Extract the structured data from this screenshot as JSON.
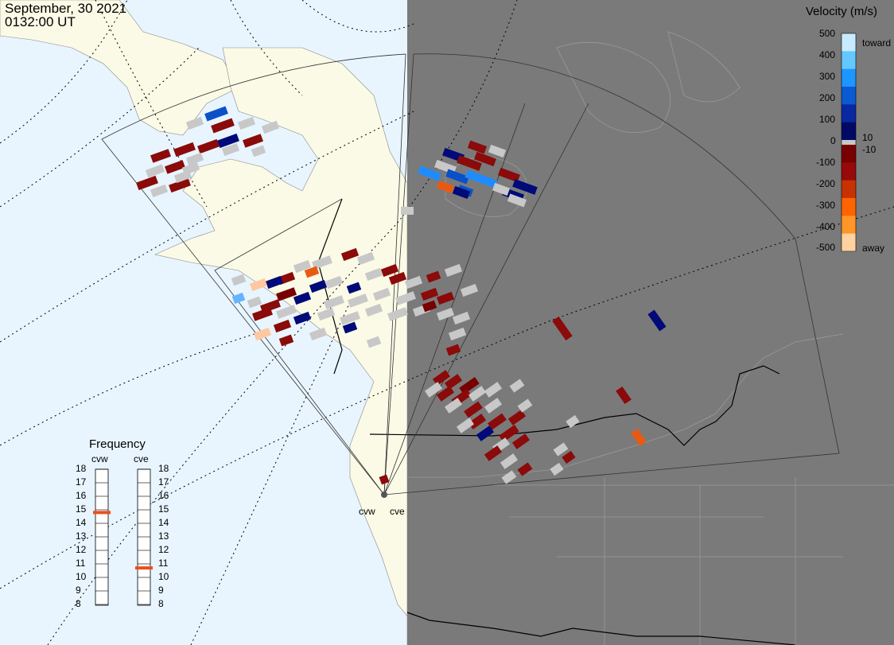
{
  "header": {
    "date": "September, 30 2021",
    "time": "0132:00 UT"
  },
  "colorbar": {
    "title": "Velocity (m/s)",
    "toward_label": "toward",
    "away_label": "away",
    "ticks": [
      "500",
      "400",
      "300",
      "200",
      "100",
      "10",
      "0",
      "-10",
      "-100",
      "-200",
      "-300",
      "-400",
      "-500"
    ],
    "colors": [
      "#c8eaff",
      "#64c8ff",
      "#1e96ff",
      "#0a5ad2",
      "#0a28a0",
      "#000a64",
      "#c8c8c8",
      "#780000",
      "#960a0a",
      "#c83200",
      "#ff6400",
      "#ff9628",
      "#ffd2a0"
    ]
  },
  "frequency": {
    "title": "Frequency",
    "radars": [
      "cvw",
      "cve"
    ],
    "levels": [
      "18",
      "17",
      "16",
      "15",
      "14",
      "13",
      "12",
      "11",
      "10",
      "9",
      "8"
    ],
    "cvw_value": 14.8,
    "cve_value": 10.7,
    "marker_color": "#e8501e"
  },
  "sites": {
    "cvw": "cvw",
    "cve": "cve"
  },
  "colors": {
    "ocean": "#e8f5ff",
    "land": "#fafae6",
    "night": "#7a7a7a",
    "ground_scatter": "#c8c8c8"
  }
}
